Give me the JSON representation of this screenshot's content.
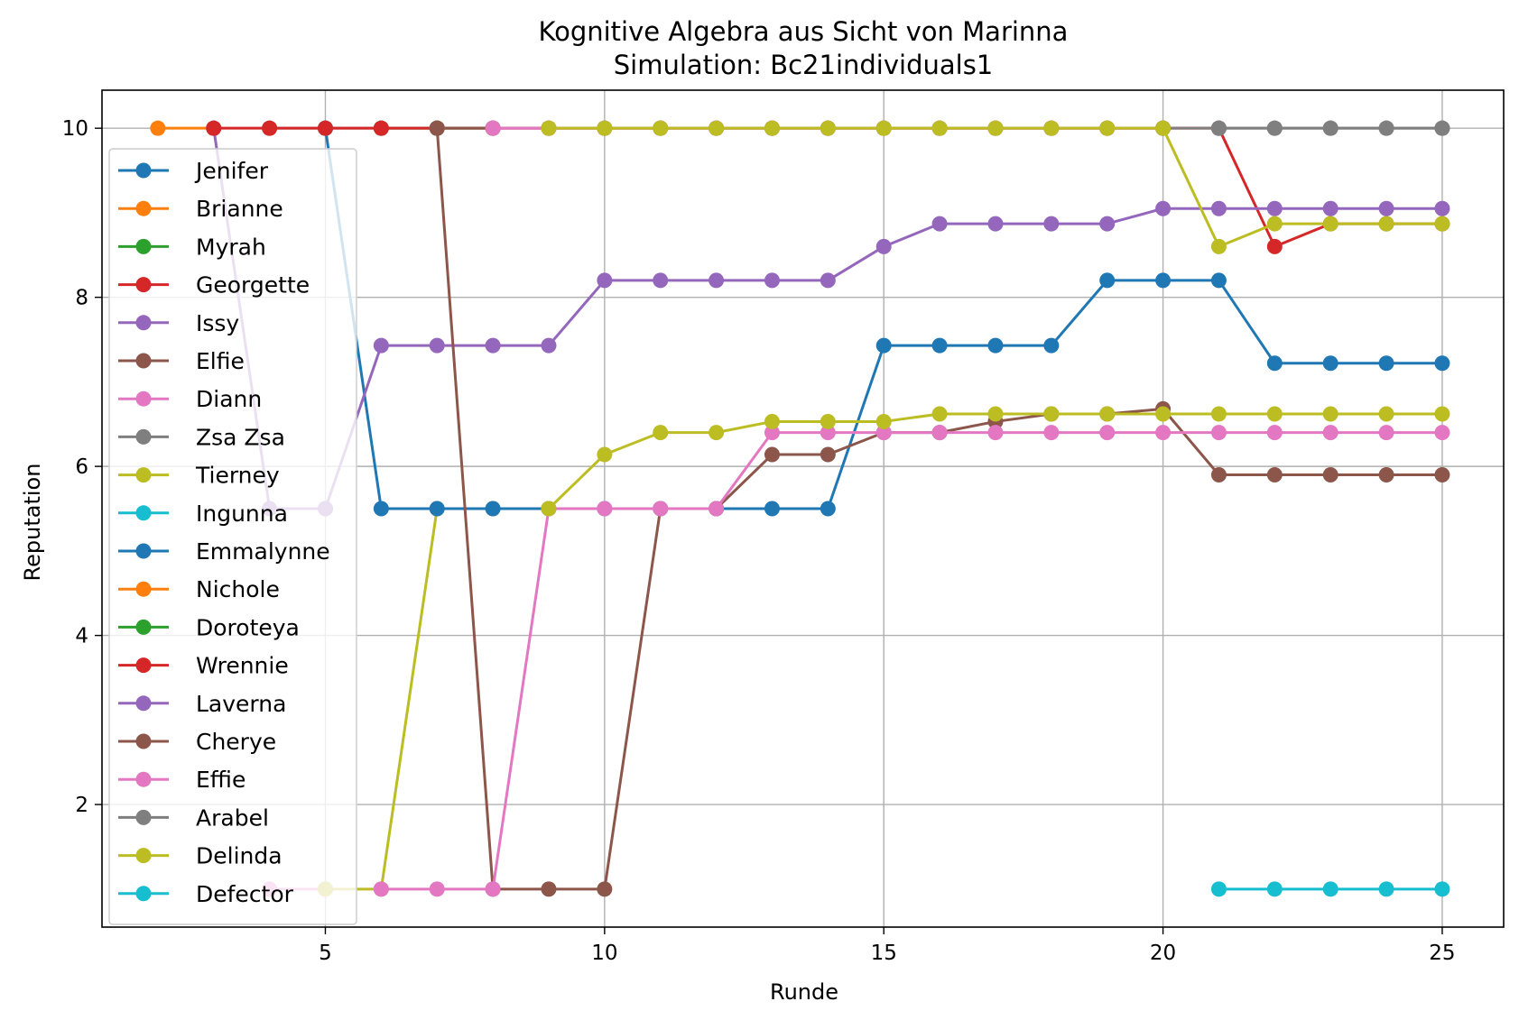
{
  "chart_data": {
    "type": "line",
    "title": "Kognitive Algebra aus Sicht von Marinna",
    "subtitle": "Simulation: Bc21individuals1",
    "xlabel": "Runde",
    "ylabel": "Reputation",
    "xlim": [
      1,
      26.1
    ],
    "ylim": [
      0.55,
      10.45
    ],
    "xticks": [
      5,
      10,
      15,
      20,
      25
    ],
    "yticks": [
      2,
      4,
      6,
      8,
      10
    ],
    "grid": true,
    "legend_position": "left",
    "series": [
      {
        "name": "Jenifer",
        "color": "#1f77b4",
        "x": [],
        "y": []
      },
      {
        "name": "Brianne",
        "color": "#ff7f0e",
        "x": [
          2,
          3
        ],
        "y": [
          10,
          10
        ]
      },
      {
        "name": "Myrah",
        "color": "#2ca02c",
        "x": [],
        "y": []
      },
      {
        "name": "Georgette",
        "color": "#d62728",
        "x": [],
        "y": []
      },
      {
        "name": "Issy",
        "color": "#9467bd",
        "x": [
          3,
          4,
          5
        ],
        "y": [
          10,
          5.5,
          5.5
        ]
      },
      {
        "name": "Elfie",
        "color": "#8c564b",
        "x": [],
        "y": []
      },
      {
        "name": "Diann",
        "color": "#e377c2",
        "x": [
          4,
          5
        ],
        "y": [
          1,
          1
        ]
      },
      {
        "name": "Zsa Zsa",
        "color": "#7f7f7f",
        "x": [
          4,
          5,
          6,
          7
        ],
        "y": [
          10,
          10,
          10,
          10
        ]
      },
      {
        "name": "Tierney",
        "color": "#bcbd22",
        "x": [
          5,
          6,
          7,
          8,
          9
        ],
        "y": [
          1,
          1,
          5.5,
          5.5,
          5.5
        ]
      },
      {
        "name": "Ingunna",
        "color": "#17becf",
        "x": [],
        "y": []
      },
      {
        "name": "Emmalynne",
        "color": "#1f77b4",
        "x": [
          5,
          6,
          7,
          8,
          9,
          10,
          11,
          12,
          13,
          14,
          15,
          16,
          17,
          18,
          19,
          20,
          21,
          22,
          23,
          24,
          25
        ],
        "y": [
          10,
          5.5,
          5.5,
          5.5,
          5.5,
          5.5,
          5.5,
          5.5,
          5.5,
          5.5,
          7.43,
          7.43,
          7.43,
          7.43,
          8.2,
          8.2,
          8.2,
          7.22,
          7.22,
          7.22,
          7.22
        ]
      },
      {
        "name": "Nichole",
        "color": "#ff7f0e",
        "x": [],
        "y": []
      },
      {
        "name": "Doroteya",
        "color": "#2ca02c",
        "x": [
          6,
          7,
          8
        ],
        "y": [
          10,
          10,
          10
        ]
      },
      {
        "name": "Wrennie",
        "color": "#d62728",
        "x": [
          3,
          4,
          5,
          6,
          7,
          8,
          9,
          10,
          11,
          12,
          13,
          14,
          15,
          16,
          17,
          18,
          19,
          20,
          21,
          22,
          23,
          24,
          25
        ],
        "y": [
          10,
          10,
          10,
          10,
          10,
          10,
          10,
          10,
          10,
          10,
          10,
          10,
          10,
          10,
          10,
          10,
          10,
          10,
          10,
          8.6,
          8.87,
          8.87,
          8.87
        ]
      },
      {
        "name": "Laverna",
        "color": "#9467bd",
        "x": [
          5,
          6,
          7,
          8,
          9,
          10,
          11,
          12,
          13,
          14,
          15,
          16,
          17,
          18,
          19,
          20,
          21,
          22,
          23,
          24,
          25
        ],
        "y": [
          5.5,
          7.43,
          7.43,
          7.43,
          7.43,
          8.2,
          8.2,
          8.2,
          8.2,
          8.2,
          8.6,
          8.87,
          8.87,
          8.87,
          8.87,
          9.05,
          9.05,
          9.05,
          9.05,
          9.05,
          9.05
        ]
      },
      {
        "name": "Cherye",
        "color": "#8c564b",
        "x": [
          7,
          8,
          9,
          10,
          11,
          12,
          13,
          14,
          15,
          16,
          17,
          18,
          19,
          20,
          21,
          22,
          23,
          24,
          25
        ],
        "y": [
          10,
          1,
          1,
          1,
          5.5,
          5.5,
          6.14,
          6.14,
          6.4,
          6.4,
          6.53,
          6.62,
          6.62,
          6.68,
          5.9,
          5.9,
          5.9,
          5.9,
          5.9
        ]
      },
      {
        "name": "Effie",
        "color": "#e377c2",
        "x": [
          6,
          7,
          8,
          9,
          10,
          11,
          12,
          13,
          14,
          15,
          16,
          17,
          18,
          19,
          20,
          21,
          22,
          23,
          24,
          25
        ],
        "y": [
          1,
          1,
          1,
          5.5,
          5.5,
          5.5,
          5.5,
          6.4,
          6.4,
          6.4,
          6.4,
          6.4,
          6.4,
          6.4,
          6.4,
          6.4,
          6.4,
          6.4,
          6.4,
          6.4
        ]
      },
      {
        "name": "Arabel",
        "color": "#7f7f7f",
        "x": [
          20,
          21,
          22,
          23,
          24,
          25
        ],
        "y": [
          10,
          10,
          10,
          10,
          10,
          10
        ]
      },
      {
        "name": "Delinda",
        "color": "#bcbd22",
        "x": [
          9,
          10,
          11,
          12,
          13,
          14,
          15,
          16,
          17,
          18,
          19,
          20,
          21,
          22,
          23,
          24,
          25
        ],
        "y": [
          5.5,
          6.14,
          6.4,
          6.4,
          6.53,
          6.53,
          6.53,
          6.62,
          6.62,
          6.62,
          6.62,
          6.62,
          6.62,
          6.62,
          6.62,
          6.62,
          6.62
        ]
      },
      {
        "name": "Defector",
        "color": "#17becf",
        "x": [
          21,
          22,
          23,
          24,
          25
        ],
        "y": [
          1,
          1,
          1,
          1,
          1
        ]
      },
      {
        "name": "",
        "color": "#8c564b",
        "x": [
          7,
          8,
          9,
          10,
          11,
          12,
          13,
          14,
          15,
          16,
          17,
          18,
          19,
          20
        ],
        "y": [
          10,
          10,
          10,
          10,
          10,
          10,
          10,
          10,
          10,
          10,
          10,
          10,
          10,
          10
        ]
      },
      {
        "name": "",
        "color": "#e377c2",
        "x": [
          8,
          9,
          10,
          11,
          12,
          13,
          14,
          15,
          16,
          17,
          18,
          19,
          20
        ],
        "y": [
          10,
          10,
          10,
          10,
          10,
          10,
          10,
          10,
          10,
          10,
          10,
          10,
          10
        ]
      },
      {
        "name": "",
        "color": "#bcbd22",
        "x": [
          9,
          10,
          11,
          12,
          13,
          14,
          15,
          16,
          17,
          18,
          19,
          20,
          21,
          22,
          23,
          24,
          25
        ],
        "y": [
          10,
          10,
          10,
          10,
          10,
          10,
          10,
          10,
          10,
          10,
          10,
          10,
          8.6,
          8.87,
          8.87,
          8.87,
          8.87
        ]
      },
      {
        "name": "",
        "color": "#7f7f7f",
        "x": [
          21,
          22,
          23,
          24,
          25
        ],
        "y": [
          10,
          10,
          10,
          10,
          10
        ]
      }
    ]
  }
}
